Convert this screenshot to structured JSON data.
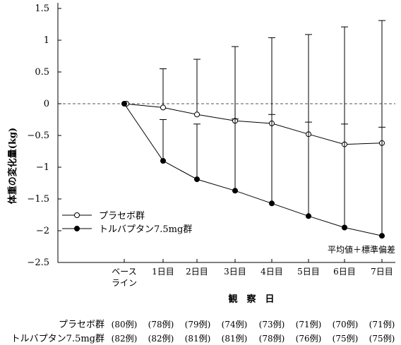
{
  "chart_data": {
    "type": "line",
    "ylabel": "体重の変化量(kg)",
    "xlabel": "観　察　日",
    "categories": [
      "ベース\nライン",
      "1日目",
      "2日目",
      "3日目",
      "4日目",
      "5日目",
      "6日目",
      "7日目"
    ],
    "ylim": [
      -2.5,
      1.5
    ],
    "yticks": [
      1.5,
      1,
      0.5,
      0,
      -0.5,
      -1,
      -1.5,
      -2,
      -2.5
    ],
    "ytick_labels": [
      "1.5",
      "1",
      "0.5",
      "0",
      "−0.5",
      "−1",
      "−1.5",
      "−2",
      "−2.5"
    ],
    "reference_line": 0,
    "grid": false,
    "legend_position": "bottom-left",
    "annotation": "平均値＋標準偏差",
    "series": [
      {
        "name": "プラセボ群",
        "marker": "open-circle",
        "values": [
          0,
          -0.06,
          -0.17,
          -0.27,
          -0.31,
          -0.48,
          -0.64,
          -0.62
        ],
        "error_upper": [
          null,
          0.55,
          0.7,
          0.9,
          1.04,
          1.09,
          1.21,
          1.31
        ],
        "n": [
          "(80例)",
          "(78例)",
          "(79例)",
          "(74例)",
          "(73例)",
          "(71例)",
          "(70例)",
          "(71例)"
        ]
      },
      {
        "name": "トルバプタン7.5mg群",
        "marker": "filled-circle",
        "values": [
          0,
          -0.9,
          -1.19,
          -1.37,
          -1.57,
          -1.77,
          -1.95,
          -2.08
        ],
        "error_upper": [
          null,
          -0.25,
          -0.32,
          -0.24,
          -0.17,
          -0.29,
          -0.32,
          -0.37
        ],
        "n": [
          "(82例)",
          "(82例)",
          "(81例)",
          "(81例)",
          "(78例)",
          "(76例)",
          "(75例)",
          "(75例)"
        ]
      }
    ]
  }
}
